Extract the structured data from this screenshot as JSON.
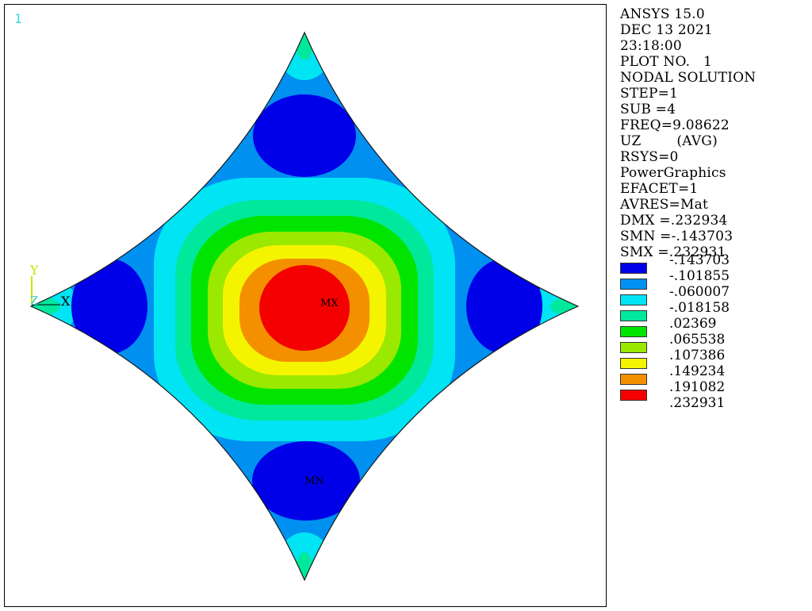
{
  "window_number": "1",
  "info_lines": [
    "ANSYS 15.0",
    "DEC 13 2021",
    "23:18:00",
    "PLOT NO.   1",
    "NODAL SOLUTION",
    "STEP=1",
    "SUB =4",
    "FREQ=9.08622",
    "UZ        (AVG)",
    "RSYS=0",
    "PowerGraphics",
    "EFACET=1",
    "AVRES=Mat",
    "DMX =.232934",
    "SMN =-.143703",
    "SMX =.232931"
  ],
  "contour_levels": [
    {
      "value": "-.143703",
      "color": "#0000e8"
    },
    {
      "value": "-.101855",
      "color": "#0090f0"
    },
    {
      "value": "-.060007",
      "color": "#00e4f4"
    },
    {
      "value": "-.018158",
      "color": "#00e89c"
    },
    {
      "value": ".02369",
      "color": "#00e400"
    },
    {
      "value": ".065538",
      "color": "#9be800"
    },
    {
      "value": ".107386",
      "color": "#f4f400"
    },
    {
      "value": ".149234",
      "color": "#f49000"
    },
    {
      "value": ".191082",
      "color": "#f40000"
    }
  ],
  "scale_max_value": ".232931",
  "axis_labels": {
    "y": "Y",
    "z": "Z",
    "x": "X"
  },
  "markers": {
    "max": "MX",
    "min": "MN"
  }
}
